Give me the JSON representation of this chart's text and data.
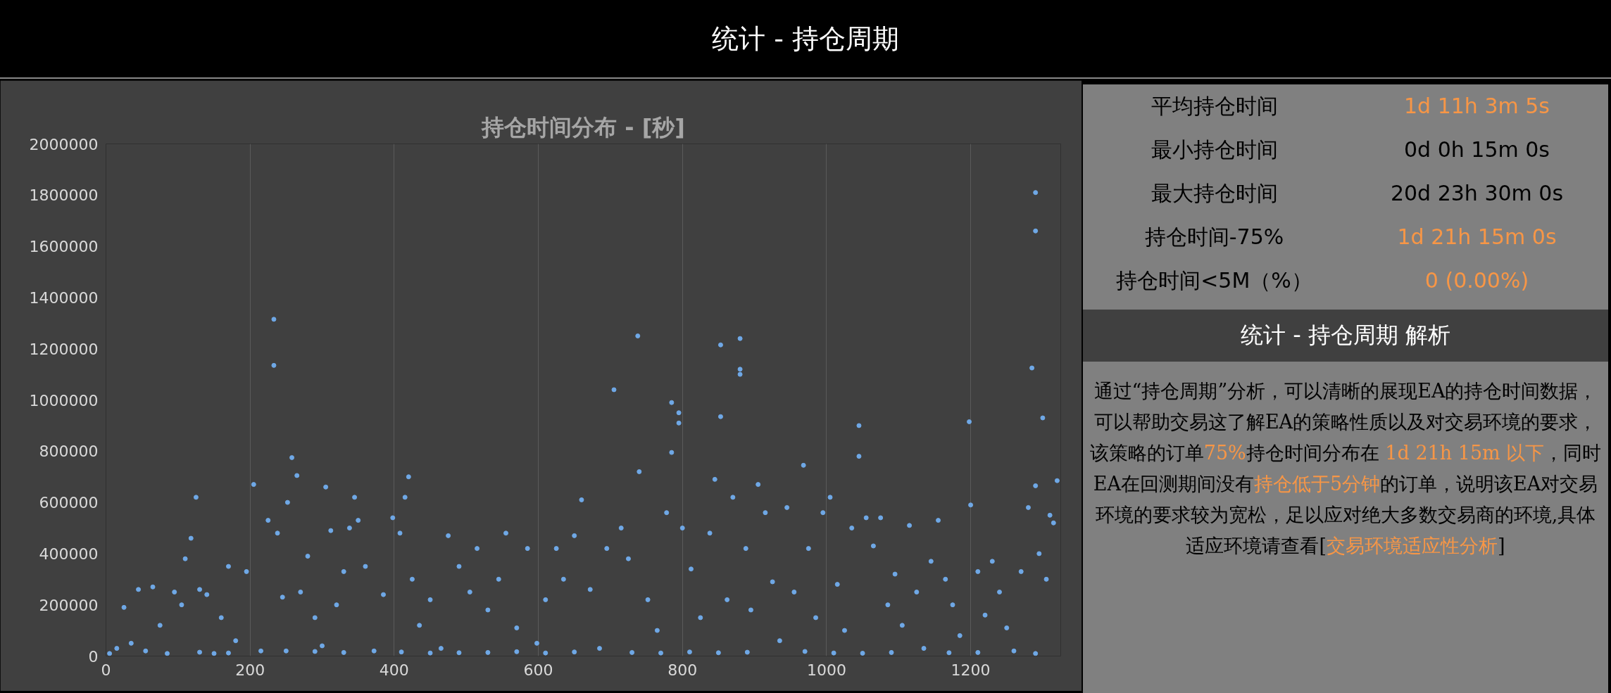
{
  "chart_data": [
    {
      "type": "other",
      "title": "统计 - 持仓周期"
    },
    {
      "type": "scatter",
      "title": "持仓时间分布 - [秒]",
      "xlim": [
        0,
        1325
      ],
      "xticks": [
        0,
        200,
        400,
        600,
        800,
        1000,
        1200
      ],
      "ylim": [
        0,
        2000000
      ],
      "yticks": [
        0,
        200000,
        400000,
        600000,
        800000,
        1000000,
        1200000,
        1400000,
        1600000,
        1800000,
        2000000
      ],
      "grid": "x",
      "marker": "circle",
      "series": [
        {
          "color": "#6fa8e6",
          "x": [
            5,
            15,
            25,
            35,
            45,
            55,
            65,
            75,
            85,
            95,
            105,
            110,
            118,
            125,
            130,
            140,
            150,
            160,
            170,
            180,
            195,
            205,
            215,
            225,
            233,
            233,
            238,
            245,
            252,
            258,
            265,
            270,
            280,
            290,
            300,
            305,
            312,
            320,
            330,
            338,
            345,
            350,
            360,
            372,
            385,
            398,
            408,
            415,
            420,
            425,
            435,
            450,
            465,
            475,
            490,
            505,
            515,
            530,
            545,
            555,
            570,
            585,
            598,
            610,
            625,
            635,
            650,
            660,
            672,
            685,
            695,
            705,
            715,
            725,
            738,
            740,
            752,
            765,
            778,
            785,
            785,
            795,
            795,
            800,
            812,
            825,
            838,
            845,
            853,
            853,
            862,
            870,
            880,
            880,
            880,
            888,
            895,
            905,
            915,
            925,
            935,
            945,
            955,
            968,
            975,
            985,
            995,
            1005,
            1015,
            1025,
            1035,
            1045,
            1045,
            1055,
            1065,
            1075,
            1085,
            1095,
            1105,
            1115,
            1125,
            1135,
            1145,
            1155,
            1165,
            1175,
            1185,
            1198,
            1200,
            1210,
            1220,
            1230,
            1240,
            1250,
            1260,
            1270,
            1280,
            1285,
            1290,
            1290,
            1290,
            1295,
            1300,
            1305,
            1310,
            1315,
            1320,
            130,
            170,
            250,
            290,
            330,
            410,
            450,
            490,
            530,
            570,
            610,
            650,
            730,
            770,
            810,
            850,
            890,
            970,
            1010,
            1050,
            1090,
            1170,
            1210,
            1290
          ],
          "values": [
            10000,
            30000,
            190000,
            50000,
            260000,
            20000,
            270000,
            120000,
            10000,
            250000,
            200000,
            380000,
            460000,
            620000,
            260000,
            240000,
            10000,
            150000,
            350000,
            60000,
            330000,
            670000,
            20000,
            530000,
            1315000,
            1135000,
            480000,
            230000,
            600000,
            775000,
            705000,
            250000,
            390000,
            150000,
            40000,
            660000,
            490000,
            200000,
            330000,
            500000,
            620000,
            530000,
            350000,
            20000,
            240000,
            540000,
            480000,
            620000,
            700000,
            300000,
            120000,
            220000,
            30000,
            470000,
            350000,
            250000,
            420000,
            180000,
            300000,
            480000,
            110000,
            420000,
            50000,
            220000,
            420000,
            300000,
            470000,
            610000,
            260000,
            30000,
            420000,
            1040000,
            500000,
            380000,
            1250000,
            720000,
            220000,
            100000,
            560000,
            990000,
            795000,
            950000,
            910000,
            500000,
            340000,
            150000,
            480000,
            690000,
            1215000,
            935000,
            220000,
            620000,
            1240000,
            1120000,
            1100000,
            420000,
            180000,
            670000,
            560000,
            290000,
            60000,
            580000,
            250000,
            745000,
            420000,
            150000,
            560000,
            620000,
            280000,
            100000,
            500000,
            900000,
            780000,
            540000,
            430000,
            540000,
            200000,
            320000,
            120000,
            510000,
            250000,
            30000,
            370000,
            530000,
            300000,
            200000,
            80000,
            915000,
            590000,
            330000,
            160000,
            370000,
            250000,
            110000,
            20000,
            330000,
            580000,
            1125000,
            1810000,
            1660000,
            665000,
            400000,
            930000,
            300000,
            550000,
            520000,
            685000,
            15000,
            12000,
            20000,
            18000,
            14000,
            16000,
            12000,
            13000,
            14000,
            17000,
            12000,
            16000,
            14000,
            12000,
            16000,
            13000,
            15000,
            18000,
            12000,
            11000,
            14000,
            13000,
            14000,
            10000
          ]
        }
      ]
    },
    {
      "type": "other",
      "annotations": [
        "平均持仓时间",
        "1d 11h 3m 5s",
        "最小持仓时间",
        "0d 0h 15m 0s",
        "最大持仓时间",
        "20d 23h 30m 0s",
        "持仓时间-75%",
        "1d 21h 15m 0s",
        "持仓时间<5M（%）",
        "0 (0.00%)"
      ],
      "colors": [
        "#000000",
        "#f79646",
        "#000000",
        "#000000",
        "#000000",
        "#000000",
        "#000000",
        "#f79646",
        "#000000",
        "#f79646"
      ]
    },
    {
      "type": "other",
      "title": "统计 - 持仓周期 解析",
      "annotations": [
        "通过“持仓周期”分析，可以清晰的展现EA的持仓时间数据，可以帮助交易这了解EA的策略性质以及对交易环境的要求，该策略的订单",
        "75%",
        "持仓时间分布在",
        " 1d 21h 15m 以下",
        "，同时EA在回测期间没有",
        "持仓低于5分钟",
        "的订单，说明该EA对交易环境的要求较为宽松，足以应对绝大多数交易商的环境,具体适应环境请查看[",
        "交易环境适应性分析",
        "]"
      ],
      "colors": [
        "#000000",
        "#f79646",
        "#000000",
        "#f79646",
        "#000000",
        "#f79646",
        "#000000",
        "#f79646",
        "#000000"
      ]
    }
  ]
}
